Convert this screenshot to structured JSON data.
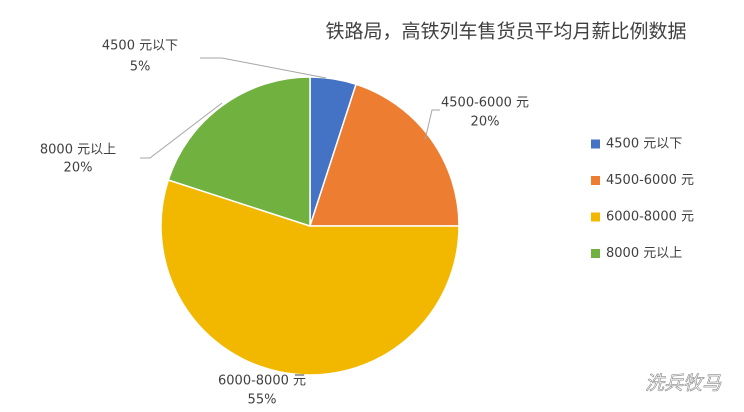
{
  "chart_data": {
    "type": "pie",
    "title": "铁路局，高铁列车售货员平均月薪比例数据",
    "categories": [
      "4500 元以下",
      "4500-6000 元",
      "6000-8000 元",
      "8000 元以上"
    ],
    "values": [
      5,
      20,
      55,
      20
    ],
    "value_labels": [
      "5%",
      "20%",
      "55%",
      "20%"
    ],
    "colors": [
      "#4472c4",
      "#ed7d31",
      "#f2b800",
      "#70b13f"
    ],
    "legend": "right"
  },
  "watermark": "洗兵牧马"
}
